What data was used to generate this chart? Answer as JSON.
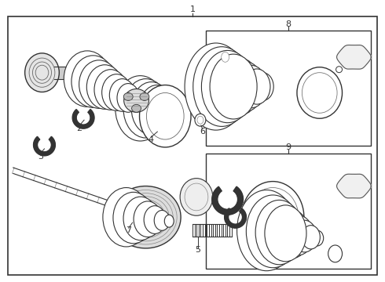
{
  "bg_color": "#ffffff",
  "border_color": "#333333",
  "fig_width": 4.9,
  "fig_height": 3.6,
  "dpi": 100
}
